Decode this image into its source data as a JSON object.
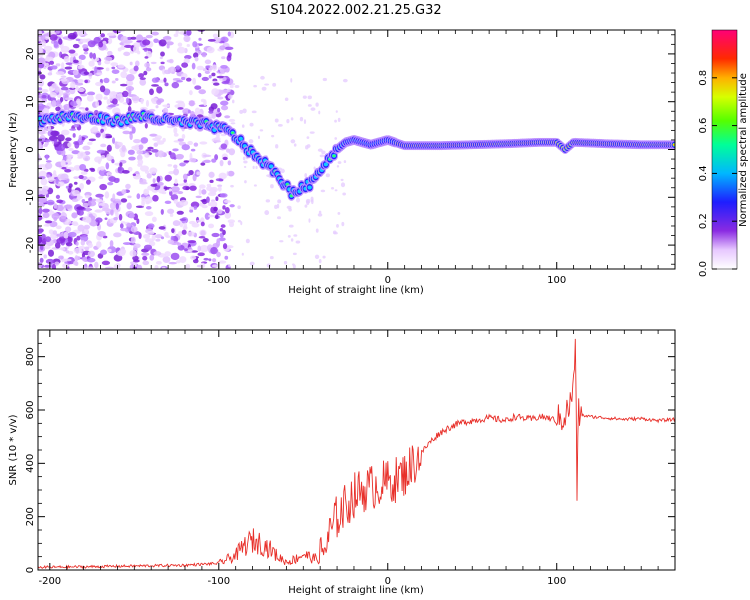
{
  "title": "S104.2022.002.21.25.G32",
  "chart_data": [
    {
      "type": "heatmap",
      "xlabel": "Height of straight line (km)",
      "ylabel": "Frequency (Hz)",
      "xlim": [
        -207,
        170
      ],
      "ylim": [
        -25,
        25
      ],
      "xticks": [
        -200,
        -100,
        0,
        100
      ],
      "yticks": [
        -20,
        -10,
        0,
        10,
        20
      ],
      "colorbar": {
        "label": "Normalized spectral amplitude",
        "range": [
          0,
          1
        ],
        "ticks": [
          0.0,
          0.2,
          0.4,
          0.6,
          0.8
        ],
        "tick_labels": [
          "0.0",
          "0.2",
          "0.4",
          "0.6",
          "0.8"
        ],
        "colormap": "gist_ncar-like: white → purple → blue → cyan → green → yellow → orange → red → magenta"
      },
      "ridge": {
        "x": [
          -205,
          -190,
          -175,
          -160,
          -145,
          -130,
          -115,
          -105,
          -95,
          -88,
          -80,
          -72,
          -64,
          -57,
          -50,
          -45,
          -40,
          -35,
          -30,
          -25,
          -20,
          -10,
          0,
          10,
          30,
          50,
          70,
          90,
          100,
          105,
          110,
          130,
          150,
          170
        ],
        "y": [
          6,
          7,
          6.5,
          6,
          7,
          6,
          5.5,
          5,
          4,
          2,
          -1,
          -3,
          -6,
          -9,
          -8,
          -7,
          -4,
          -2,
          0,
          1.5,
          2,
          1,
          2,
          0.8,
          0.8,
          1,
          1.2,
          1.5,
          1.5,
          0,
          1.5,
          1.2,
          1,
          1
        ]
      }
    },
    {
      "type": "line",
      "xlabel": "Height of straight line (km)",
      "ylabel": "SNR (10 * v/v)",
      "xlim": [
        -207,
        170
      ],
      "ylim": [
        0,
        900
      ],
      "xticks": [
        -200,
        -100,
        0,
        100
      ],
      "yticks": [
        0,
        200,
        400,
        600,
        800
      ],
      "color": "#e8302a",
      "series": [
        {
          "x": [
            -207,
            -180,
            -150,
            -120,
            -100,
            -90,
            -85,
            -80,
            -75,
            -70,
            -65,
            -60,
            -55,
            -50,
            -45,
            -40,
            -35,
            -30,
            -25,
            -20,
            -15,
            -10,
            -5,
            0,
            5,
            10,
            15,
            20,
            25,
            30,
            35,
            40,
            45,
            50,
            55,
            60,
            65,
            70,
            75,
            80,
            85,
            90,
            95,
            100,
            105,
            108,
            110,
            111,
            112,
            113,
            115,
            120,
            130,
            140,
            150,
            160,
            170
          ],
          "y": [
            10,
            12,
            15,
            18,
            25,
            55,
            90,
            110,
            100,
            80,
            50,
            30,
            40,
            60,
            45,
            40,
            120,
            200,
            240,
            280,
            300,
            310,
            320,
            330,
            340,
            360,
            400,
            440,
            480,
            510,
            530,
            545,
            555,
            560,
            565,
            570,
            565,
            560,
            575,
            570,
            565,
            575,
            570,
            560,
            580,
            620,
            700,
            850,
            300,
            590,
            580,
            575,
            570,
            565,
            568,
            560,
            565
          ]
        }
      ]
    }
  ]
}
